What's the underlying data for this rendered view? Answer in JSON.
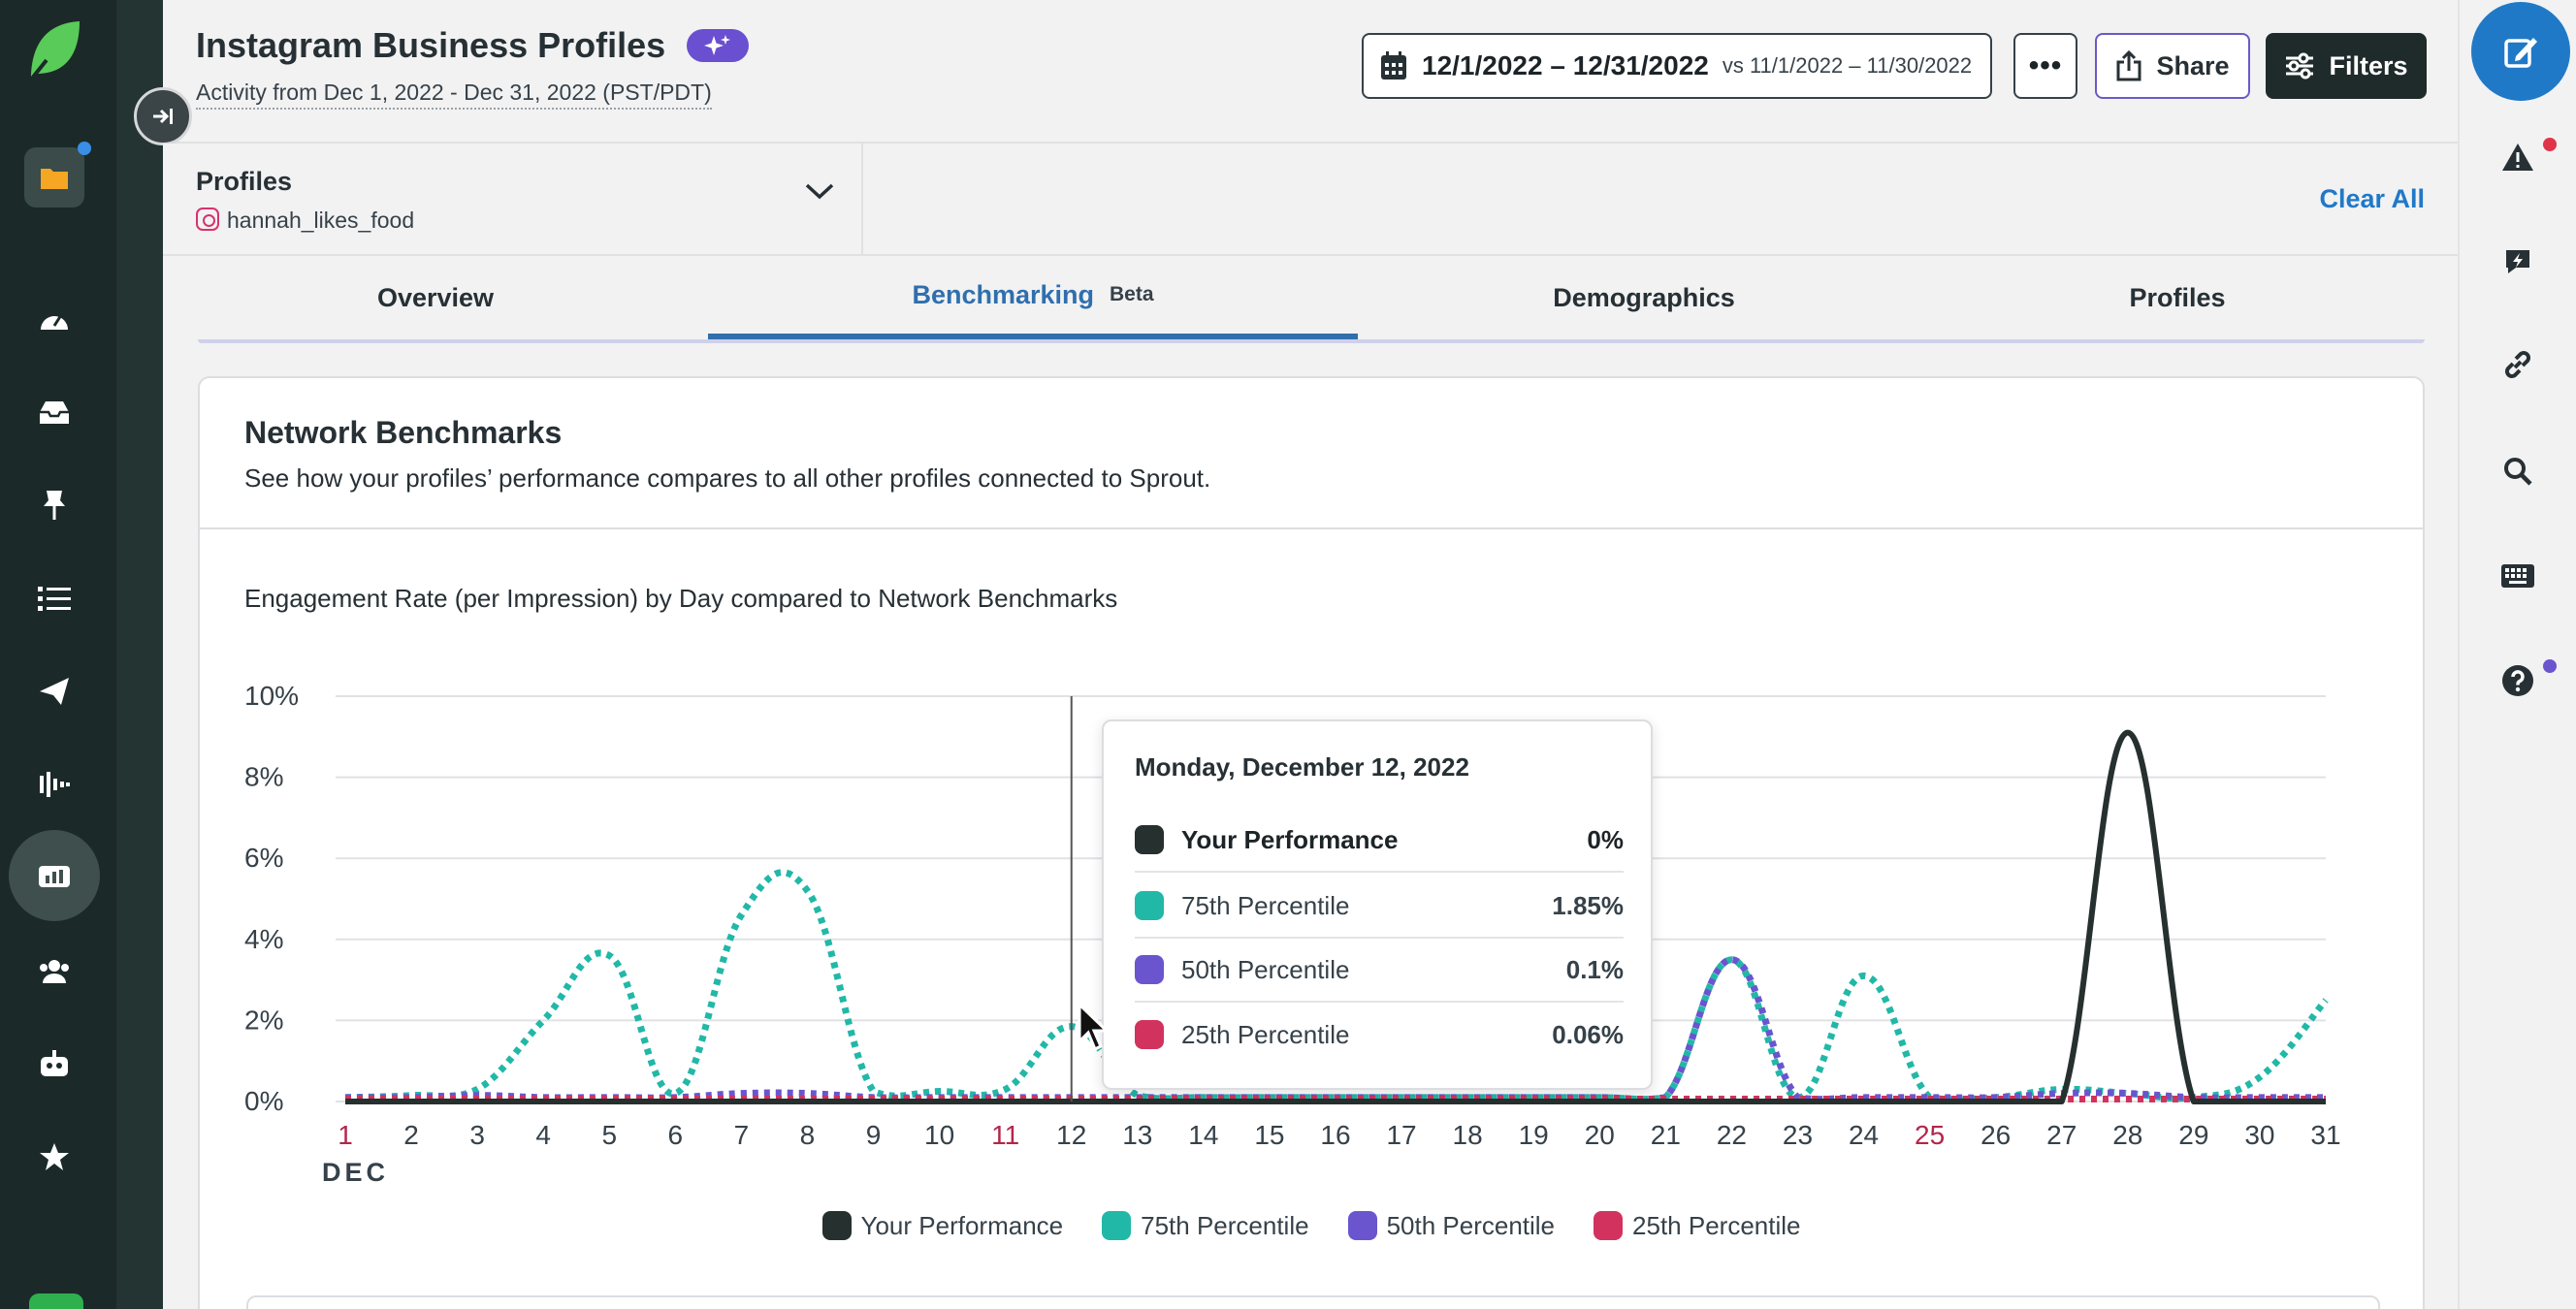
{
  "header": {
    "title": "Instagram Business Profiles",
    "subtitle": "Activity from Dec 1, 2022 - Dec 31, 2022 (PST/PDT)",
    "date_range": "12/1/2022 – 12/31/2022",
    "compare_range": "vs 11/1/2022 – 11/30/2022",
    "more_label": "•••",
    "share_label": "Share",
    "filters_label": "Filters"
  },
  "profiles": {
    "label": "Profiles",
    "handle": "hannah_likes_food",
    "clear_all": "Clear All"
  },
  "tabs": [
    {
      "label": "Overview"
    },
    {
      "label": "Benchmarking",
      "badge": "Beta",
      "active": true
    },
    {
      "label": "Demographics"
    },
    {
      "label": "Profiles"
    }
  ],
  "card": {
    "title": "Network Benchmarks",
    "description": "See how your profiles’ performance compares to all other profiles connected to Sprout.",
    "chart_title": "Engagement Rate (per Impression) by Day compared to Network Benchmarks"
  },
  "tooltip": {
    "title": "Monday, December 12, 2022",
    "rows": [
      {
        "label": "Your Performance",
        "value": "0%"
      },
      {
        "label": "75th Percentile",
        "value": "1.85%"
      },
      {
        "label": "50th Percentile",
        "value": "0.1%"
      },
      {
        "label": "25th Percentile",
        "value": "0.06%"
      }
    ]
  },
  "colors": {
    "your_performance": "#26302f",
    "p75": "#21b8a7",
    "p50": "#6a55cf",
    "p25": "#d1335e",
    "weekend_tick": "#b3264a",
    "accent_blue": "#2079c7"
  },
  "chart_data": {
    "type": "line",
    "title": "Engagement Rate (per Impression) by Day compared to Network Benchmarks",
    "x": [
      1,
      2,
      3,
      4,
      5,
      6,
      7,
      8,
      9,
      10,
      11,
      12,
      13,
      14,
      15,
      16,
      17,
      18,
      19,
      20,
      21,
      22,
      23,
      24,
      25,
      26,
      27,
      28,
      29,
      30,
      31
    ],
    "x_tick_labels": [
      "1",
      "2",
      "3",
      "4",
      "5",
      "6",
      "7",
      "8",
      "9",
      "10",
      "11",
      "12",
      "13",
      "14",
      "15",
      "16",
      "17",
      "18",
      "19",
      "20",
      "21",
      "22",
      "23",
      "24",
      "25",
      "26",
      "27",
      "28",
      "29",
      "30",
      "31"
    ],
    "x_month_label": "DEC",
    "highlighted_ticks": [
      1,
      11,
      25
    ],
    "ylim": [
      0,
      10
    ],
    "y_ticks": [
      "0%",
      "2%",
      "4%",
      "6%",
      "8%",
      "10%"
    ],
    "hover_x": 12,
    "series": [
      {
        "name": "Your Performance",
        "style": "solid",
        "values": [
          0,
          0,
          0,
          0,
          0,
          0,
          0,
          0,
          0,
          0,
          0,
          0,
          0,
          0,
          0,
          0,
          0,
          0,
          0,
          0,
          0,
          0,
          0,
          0,
          0,
          0,
          0,
          9.1,
          0,
          0,
          0
        ]
      },
      {
        "name": "75th Percentile",
        "style": "dotted",
        "values": [
          0.1,
          0.15,
          0.3,
          2.0,
          3.6,
          0.2,
          4.6,
          5.2,
          0.25,
          0.25,
          0.3,
          1.85,
          0.15,
          0.1,
          0.1,
          0.1,
          0.1,
          0.1,
          0.1,
          0.1,
          0.1,
          3.5,
          0.1,
          3.1,
          0.1,
          0.1,
          0.3,
          0.2,
          0.1,
          0.6,
          2.5
        ]
      },
      {
        "name": "50th Percentile",
        "style": "dotted",
        "values": [
          0.1,
          0.1,
          0.15,
          0.1,
          0.1,
          0.1,
          0.2,
          0.2,
          0.1,
          0.1,
          0.1,
          0.1,
          0.1,
          0.1,
          0.1,
          0.1,
          0.1,
          0.1,
          0.1,
          0.1,
          0.1,
          3.5,
          0.1,
          0.1,
          0.1,
          0.1,
          0.2,
          0.2,
          0.1,
          0.1,
          0.1
        ]
      },
      {
        "name": "25th Percentile",
        "style": "dotted",
        "values": [
          0.06,
          0.06,
          0.06,
          0.06,
          0.06,
          0.06,
          0.06,
          0.06,
          0.06,
          0.06,
          0.06,
          0.06,
          0.06,
          0.06,
          0.06,
          0.06,
          0.06,
          0.06,
          0.06,
          0.06,
          0.06,
          0.06,
          0.06,
          0.06,
          0.06,
          0.06,
          0.06,
          0.06,
          0.06,
          0.06,
          0.06
        ]
      }
    ],
    "legend": [
      "Your Performance",
      "75th Percentile",
      "50th Percentile",
      "25th Percentile"
    ],
    "legend_position": "bottom",
    "grid": true
  }
}
